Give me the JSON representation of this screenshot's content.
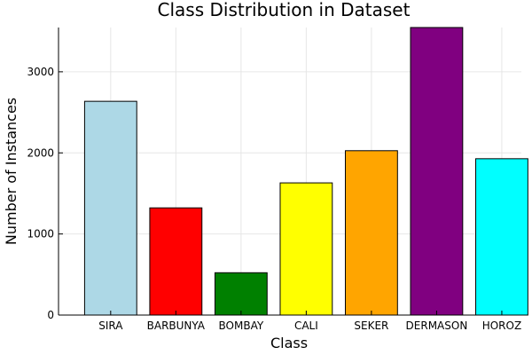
{
  "chart_data": {
    "type": "bar",
    "title": "Class Distribution in Dataset",
    "xlabel": "Class",
    "ylabel": "Number of Instances",
    "categories": [
      "SIRA",
      "BARBUNYA",
      "BOMBAY",
      "CALI",
      "SEKER",
      "DERMASON",
      "HOROZ"
    ],
    "values": [
      2636,
      1322,
      522,
      1630,
      2027,
      3546,
      1928
    ],
    "colors": [
      "#add8e6",
      "#ff0000",
      "#008000",
      "#ffff00",
      "#ffa500",
      "#800080",
      "#00ffff"
    ],
    "ylim": [
      0,
      3546
    ],
    "yticks": [
      0,
      1000,
      2000,
      3000
    ],
    "grid": true,
    "legend": "none"
  }
}
